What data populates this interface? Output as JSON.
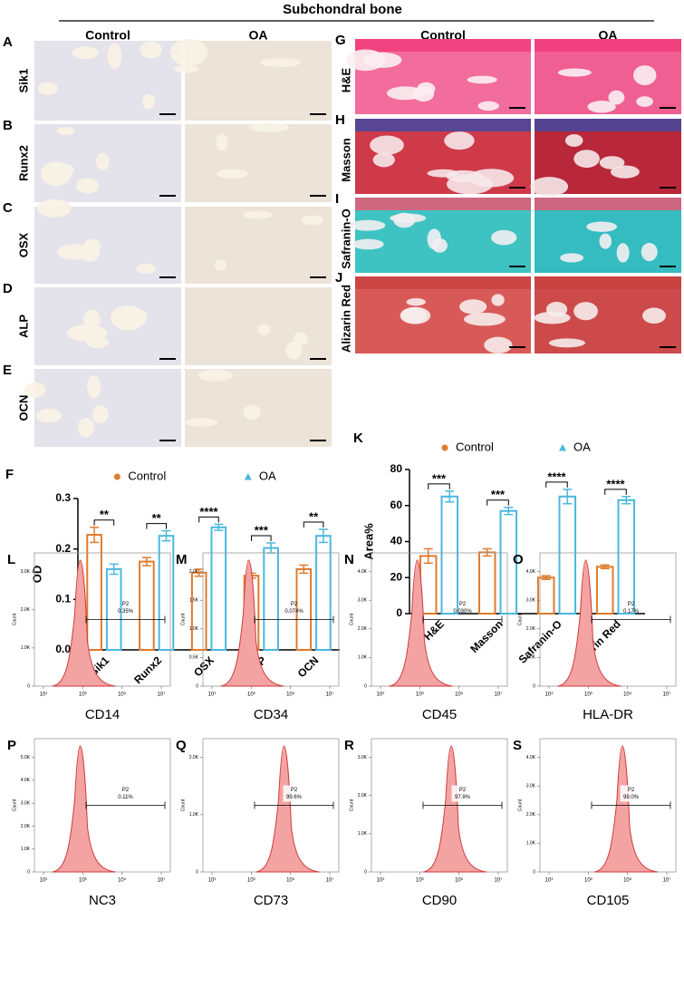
{
  "title": "Subchondral bone",
  "ihc": {
    "columns": [
      "Control",
      "OA"
    ],
    "rows": [
      {
        "letter": "A",
        "label": "Sik1"
      },
      {
        "letter": "B",
        "label": "Runx2"
      },
      {
        "letter": "C",
        "label": "OSX"
      },
      {
        "letter": "D",
        "label": "ALP"
      },
      {
        "letter": "E",
        "label": "OCN"
      }
    ]
  },
  "stain": {
    "columns": [
      "Control",
      "OA"
    ],
    "rows": [
      {
        "letter": "G",
        "label": "H&E"
      },
      {
        "letter": "H",
        "label": "Masson"
      },
      {
        "letter": "I",
        "label": "Safranin-O"
      },
      {
        "letter": "J",
        "label": "Alizarin Red"
      }
    ]
  },
  "chart_data": [
    {
      "type": "bar",
      "panel": "F",
      "y_label": "OD",
      "categories": [
        "Sik1",
        "Runx2",
        "OSX",
        "ALP",
        "OCN"
      ],
      "series": [
        {
          "name": "Control",
          "color": "#e07b2c",
          "values": [
            0.228,
            0.175,
            0.153,
            0.147,
            0.16
          ],
          "errors": [
            0.015,
            0.008,
            0.007,
            0.005,
            0.008
          ]
        },
        {
          "name": "OA",
          "color": "#4ab8e0",
          "values": [
            0.16,
            0.226,
            0.243,
            0.202,
            0.226
          ],
          "errors": [
            0.01,
            0.01,
            0.006,
            0.01,
            0.013
          ]
        }
      ],
      "significance": [
        "**",
        "**",
        "****",
        "***",
        "**"
      ],
      "ylim": [
        0,
        0.3
      ],
      "yticks": [
        {
          "value": 0,
          "label": "0.0"
        },
        0.1,
        0.2,
        0.3
      ],
      "legend": "top"
    },
    {
      "type": "bar",
      "panel": "K",
      "y_label": "Area%",
      "categories": [
        "H&E",
        "Masson",
        "Safranin-O",
        "Alizarin Red"
      ],
      "series": [
        {
          "name": "Control",
          "color": "#e07b2c",
          "values": [
            32,
            34,
            20,
            26
          ],
          "errors": [
            4,
            2,
            1,
            1
          ]
        },
        {
          "name": "OA",
          "color": "#4ab8e0",
          "values": [
            65,
            57,
            65,
            63
          ],
          "errors": [
            3,
            2,
            4,
            2
          ]
        }
      ],
      "significance": [
        "***",
        "***",
        "****",
        "****"
      ],
      "ylim": [
        0,
        80
      ],
      "yticks": [
        0,
        20,
        40,
        60,
        80
      ],
      "legend": "top"
    }
  ],
  "flow": {
    "y_label": "Count",
    "xticks": [
      "10¹",
      "10³",
      "10⁵",
      "10⁷"
    ],
    "panels": [
      {
        "letter": "L",
        "marker": "CD14",
        "gate": "P2",
        "percent": "0.35%",
        "yticks": [
          "0",
          "1.0K",
          "2.0K",
          "3.0K"
        ]
      },
      {
        "letter": "M",
        "marker": "CD34",
        "gate": "P2",
        "percent": "0.074%",
        "yticks": [
          "0",
          "0.5K",
          "1.0K",
          "1.5K",
          "2.0K"
        ]
      },
      {
        "letter": "N",
        "marker": "CD45",
        "gate": "P2",
        "percent": "0.030%",
        "yticks": [
          "0",
          "1.0K",
          "2.0K",
          "3.0K",
          "4.0K"
        ]
      },
      {
        "letter": "O",
        "marker": "HLA-DR",
        "gate": "P2",
        "percent": "0.17%",
        "yticks": [
          "0",
          "1.0K",
          "2.0K",
          "3.0K",
          "4.0K"
        ]
      },
      {
        "letter": "P",
        "marker": "NC3",
        "gate": "P2",
        "percent": "0.11%",
        "yticks": [
          "0",
          "1.0K",
          "2.0K",
          "3.0K",
          "4.0K",
          "5.0K"
        ]
      },
      {
        "letter": "Q",
        "marker": "CD73",
        "gate": "P2",
        "percent": "99.6%",
        "yticks": [
          "0",
          "1.0K",
          "2.0K"
        ]
      },
      {
        "letter": "R",
        "marker": "CD90",
        "gate": "P2",
        "percent": "97.9%",
        "yticks": [
          "0",
          "1.0K",
          "2.0K",
          "3.0K"
        ]
      },
      {
        "letter": "S",
        "marker": "CD105",
        "gate": "P2",
        "percent": "99.0%",
        "yticks": [
          "0",
          "1.0K",
          "2.0K",
          "3.0K",
          "4.0K"
        ]
      }
    ]
  }
}
